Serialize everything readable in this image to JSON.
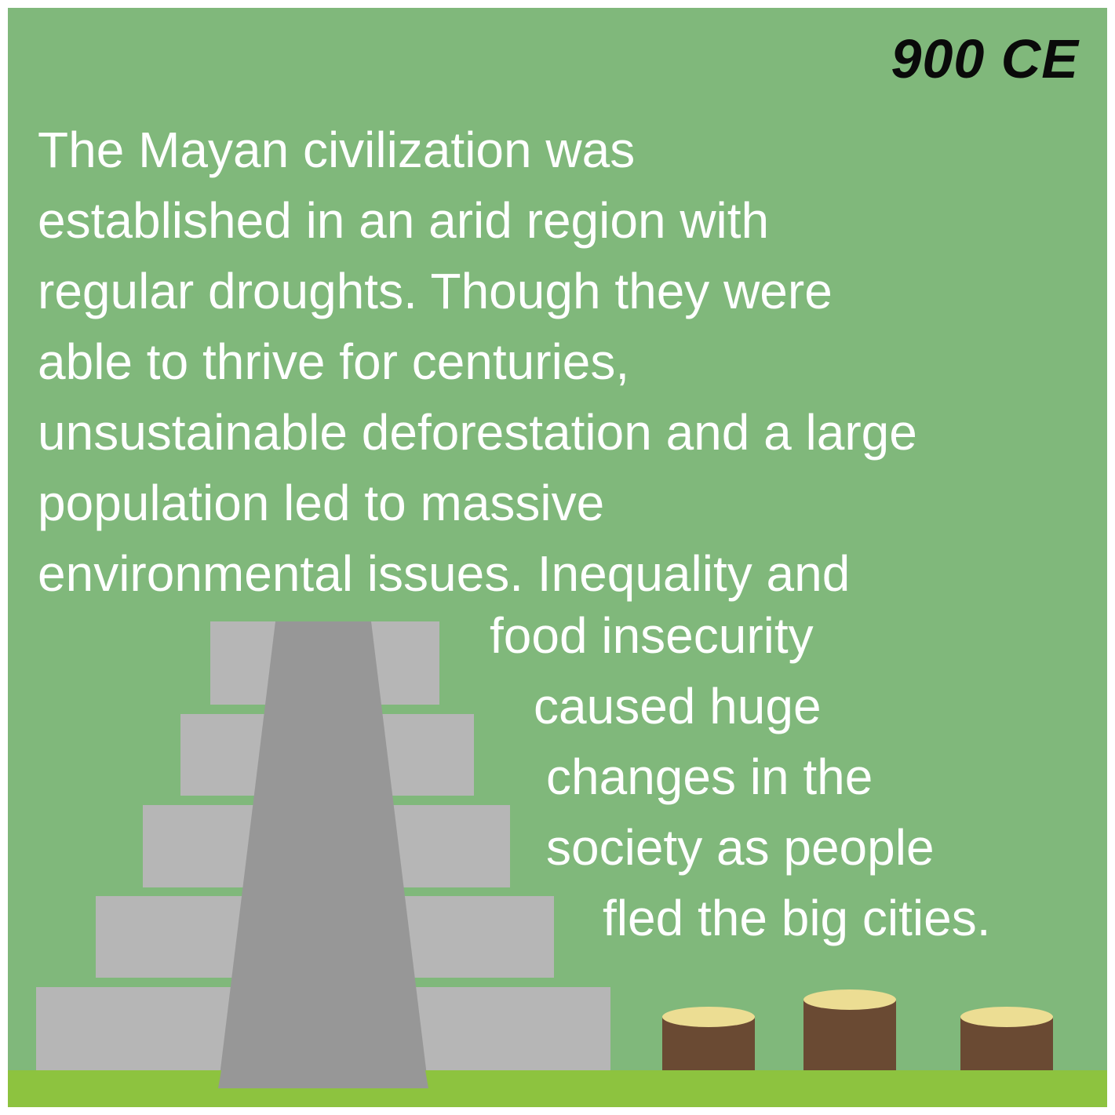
{
  "year_label": "900 CE",
  "paragraph": {
    "lines": [
      "The Mayan civilization was",
      "established in an arid region with",
      "regular droughts. Though they were",
      "able to thrive for centuries,",
      "unsustainable deforestation and a large",
      "population led to massive",
      "environmental issues. Inequality and",
      "food insecurity",
      "caused huge",
      "changes in the",
      "society as people",
      "fled the big cities."
    ]
  },
  "colors": {
    "background": "#80b87b",
    "ground": "#8dc33f",
    "pyramid_steps": "#b6b6b6",
    "pyramid_stairway": "#979797",
    "stump_bark": "#6a4a33",
    "stump_top": "#ecdd93",
    "text": "#ffffff",
    "year_text": "#0a0a0a"
  },
  "illustration": {
    "pyramid": "stepped-pyramid",
    "stumps": [
      "tree-stump",
      "tree-stump",
      "tree-stump"
    ]
  }
}
